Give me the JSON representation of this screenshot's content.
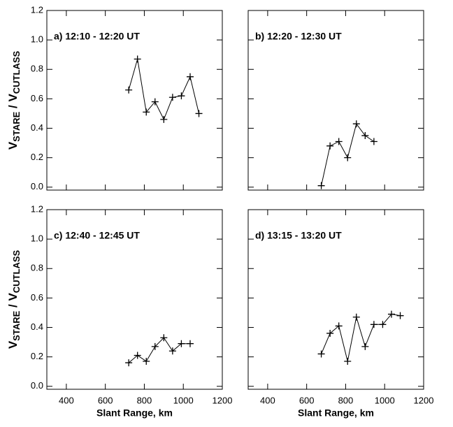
{
  "chart_data": [
    {
      "type": "line",
      "title": "a) 12:10 - 12:20 UT",
      "x": [
        720,
        765,
        810,
        855,
        900,
        945,
        990,
        1035,
        1080
      ],
      "values": [
        0.66,
        0.87,
        0.51,
        0.58,
        0.46,
        0.61,
        0.62,
        0.75,
        0.5
      ],
      "color": "#000000",
      "marker": "plus",
      "ylabel": [
        {
          "text": "V"
        },
        {
          "text": "STARE",
          "sub": true
        },
        {
          "text": " / V"
        },
        {
          "text": "CUTLASS",
          "sub": true
        }
      ],
      "xlim": [
        300,
        1200
      ],
      "xticks": [
        400,
        600,
        800,
        1000,
        1200
      ],
      "ylim": [
        -0.02,
        1.2
      ],
      "yticks": [
        {
          "value": 0,
          "label": "0.0"
        },
        0.2,
        0.4,
        0.6,
        0.8,
        {
          "value": 1,
          "label": "1.0"
        },
        1.2
      ]
    },
    {
      "type": "line",
      "title": "b) 12:20 - 12:30 UT",
      "x": [
        675,
        720,
        765,
        810,
        855,
        900,
        945
      ],
      "values": [
        0.01,
        0.28,
        0.31,
        0.2,
        0.43,
        0.35,
        0.31
      ],
      "color": "#000000",
      "marker": "plus",
      "xlim": [
        300,
        1200
      ],
      "xticks": [
        400,
        600,
        800,
        1000,
        1200
      ],
      "ylim": [
        -0.02,
        1.2
      ],
      "yticks": [
        0,
        0.2,
        0.4,
        0.6,
        0.8,
        1,
        1.2
      ]
    },
    {
      "type": "line",
      "title": "c) 12:40 - 12:45 UT",
      "x": [
        720,
        765,
        810,
        855,
        900,
        945,
        990,
        1035
      ],
      "values": [
        0.16,
        0.21,
        0.17,
        0.27,
        0.33,
        0.24,
        0.29,
        0.29
      ],
      "color": "#000000",
      "marker": "plus",
      "xlabel": "Slant Range, km",
      "ylabel": [
        {
          "text": "V"
        },
        {
          "text": "STARE",
          "sub": true
        },
        {
          "text": " / V"
        },
        {
          "text": "CUTLASS",
          "sub": true
        }
      ],
      "xlim": [
        300,
        1200
      ],
      "xticks": [
        400,
        600,
        800,
        1000,
        1200
      ],
      "ylim": [
        -0.02,
        1.2
      ],
      "yticks": [
        {
          "value": 0,
          "label": "0.0"
        },
        0.2,
        0.4,
        0.6,
        0.8,
        {
          "value": 1,
          "label": "1.0"
        },
        1.2
      ]
    },
    {
      "type": "line",
      "title": "d) 13:15 - 13:20 UT",
      "x": [
        675,
        720,
        765,
        810,
        855,
        900,
        945,
        990,
        1035,
        1080
      ],
      "values": [
        0.22,
        0.36,
        0.41,
        0.17,
        0.47,
        0.27,
        0.42,
        0.42,
        0.49,
        0.48
      ],
      "color": "#000000",
      "marker": "plus",
      "xlabel": "Slant Range, km",
      "xlim": [
        300,
        1200
      ],
      "xticks": [
        400,
        600,
        800,
        1000,
        1200
      ],
      "ylim": [
        -0.02,
        1.2
      ],
      "yticks": [
        0,
        0.2,
        0.4,
        0.6,
        0.8,
        1,
        1.2
      ]
    }
  ]
}
